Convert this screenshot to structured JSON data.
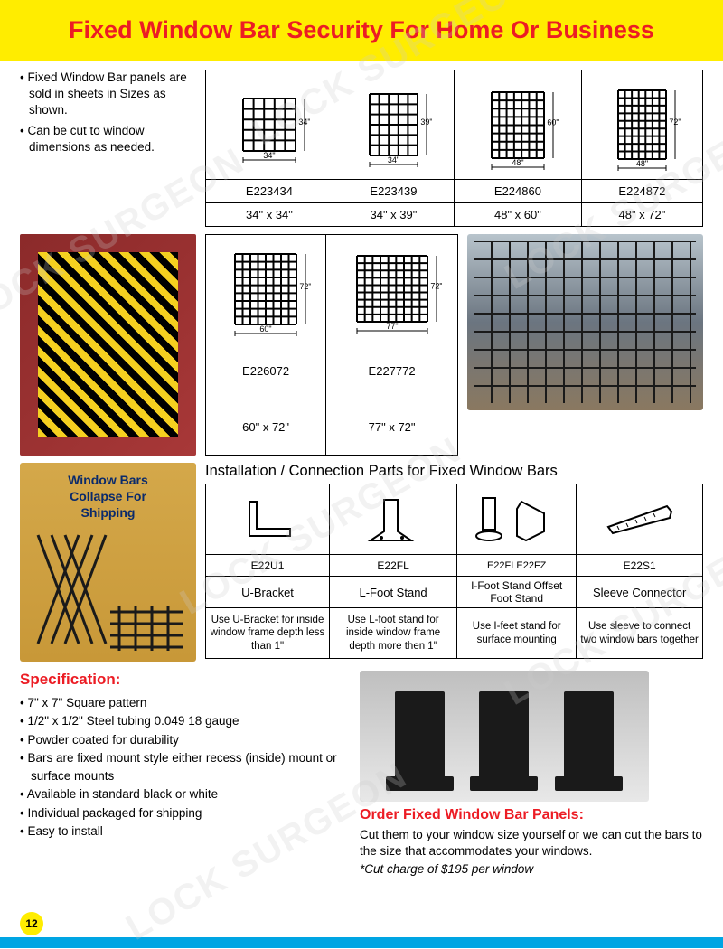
{
  "colors": {
    "yellow": "#ffed00",
    "red": "#ec1c24",
    "blue": "#00a5e3",
    "text": "#000000"
  },
  "header": {
    "title": "Fixed Window Bar Security For Home Or Business"
  },
  "intro": {
    "bullets": [
      "Fixed Window Bar panels are sold in sheets in Sizes as shown.",
      "Can be cut to window dimensions as needed."
    ]
  },
  "sizes_top": [
    {
      "code": "E223434",
      "dim": "34\" x 34\"",
      "w": "34\"",
      "h": "34\"",
      "cols": 5,
      "rows": 5
    },
    {
      "code": "E223439",
      "dim": "34\" x 39\"",
      "w": "34\"",
      "h": "39\"",
      "cols": 5,
      "rows": 6
    },
    {
      "code": "E224860",
      "dim": "48\" x 60\"",
      "w": "48\"",
      "h": "60\"",
      "cols": 7,
      "rows": 8
    },
    {
      "code": "E224872",
      "dim": "48\" x 72\"",
      "w": "48\"",
      "h": "72\"",
      "cols": 7,
      "rows": 9
    }
  ],
  "sizes_bottom": [
    {
      "code": "E226072",
      "dim": "60\" x 72\"",
      "w": "60\"",
      "h": "72\"",
      "cols": 8,
      "rows": 9
    },
    {
      "code": "E227772",
      "dim": "77\" x 72\"",
      "w": "77\"",
      "h": "72\"",
      "cols": 9,
      "rows": 9
    }
  ],
  "collapse": {
    "label1": "Window Bars",
    "label2": "Collapse For",
    "label3": "Shipping"
  },
  "install": {
    "title": "Installation / Connection Parts for Fixed Window Bars",
    "parts": [
      {
        "code": "E22U1",
        "name": "U-Bracket",
        "desc": "Use U-Bracket for inside window frame depth less than 1\""
      },
      {
        "code": "E22FL",
        "name": "L-Foot Stand",
        "desc": "Use L-foot stand for inside window frame depth more then 1\""
      },
      {
        "code": "E22FI    E22FZ",
        "name": "I-Foot Stand Offset Foot Stand",
        "desc": "Use I-feet stand for surface mounting"
      },
      {
        "code": "E22S1",
        "name": "Sleeve Connector",
        "desc": "Use sleeve to connect two window bars together"
      }
    ]
  },
  "spec": {
    "title": "Specification:",
    "items": [
      "7\" x 7\" Square pattern",
      "1/2\" x 1/2\" Steel tubing 0.049  18 gauge",
      "Powder coated for durability",
      "Bars are fixed mount style either recess (inside) mount or surface mounts",
      "Available in standard black or white",
      "Individual packaged for shipping",
      "Easy to install"
    ]
  },
  "order": {
    "title": "Order Fixed Window Bar Panels:",
    "body": "Cut them to your window size yourself or we can cut the bars to the size that accommodates your windows.",
    "cut": "*Cut charge of $195 per window"
  },
  "page": "12",
  "watermark": "LOCK SURGEON"
}
